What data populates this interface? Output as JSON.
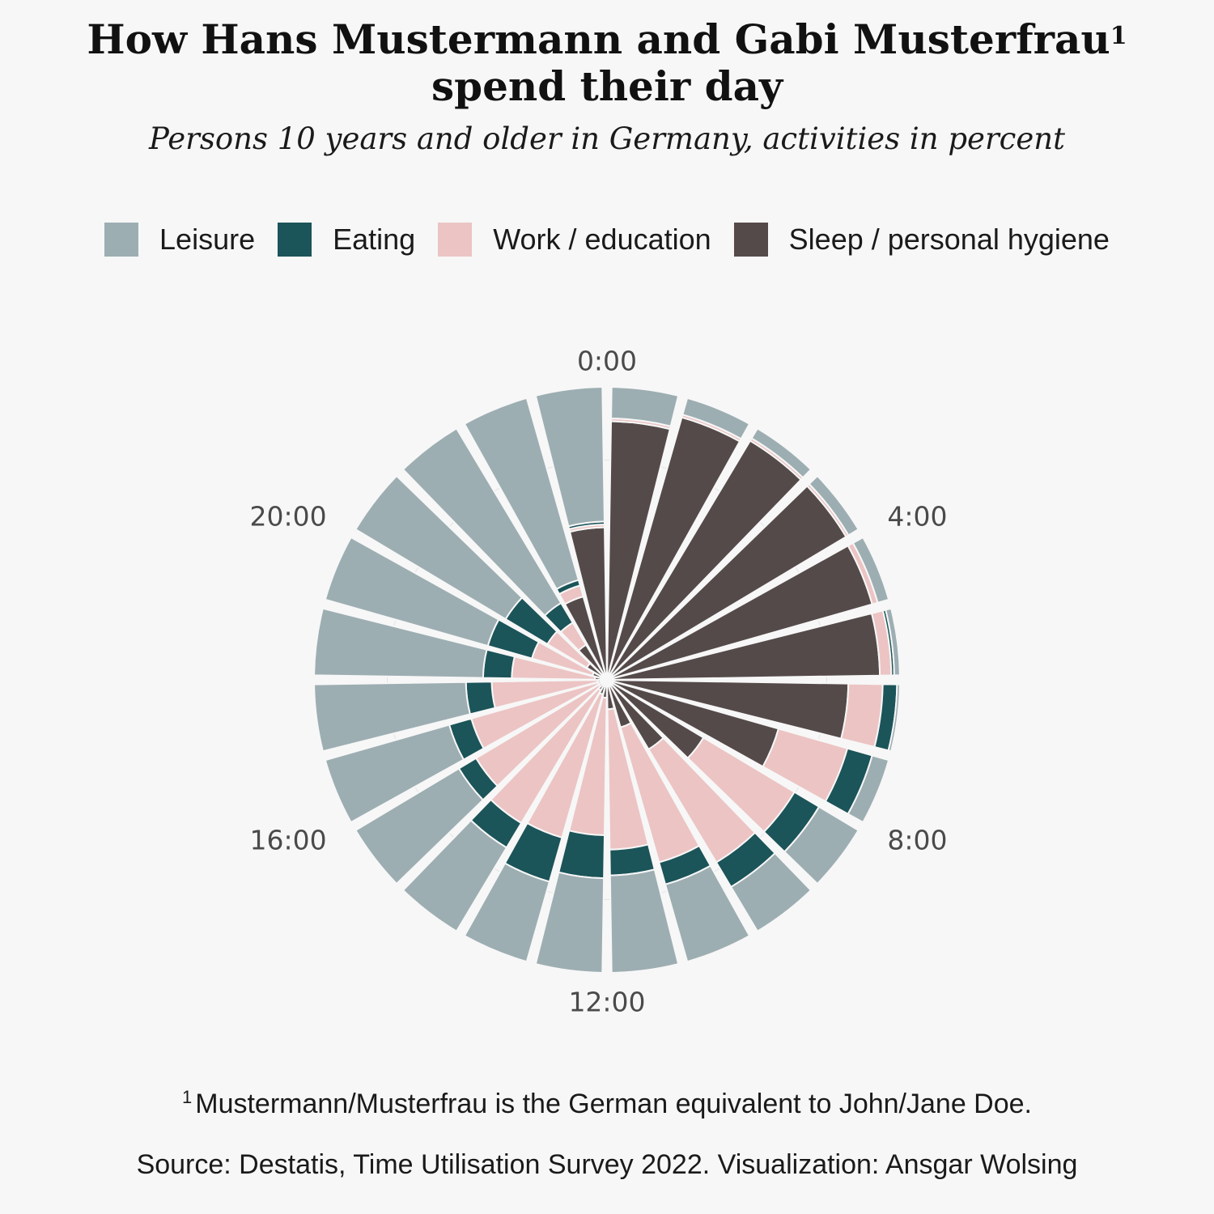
{
  "title": {
    "line1": "How Hans Mustermann and Gabi Musterfrau",
    "footnote_mark": "1",
    "line2": "spend their day"
  },
  "subtitle": "Persons 10 years and older in Germany, activities in percent",
  "footnote": {
    "mark": "1",
    "text": "Mustermann/Musterfrau is the German equivalent to John/Jane Doe."
  },
  "source": "Source: Destatis, Time Utilisation Survey 2022. Visualization: Ansgar Wolsing",
  "chart_data": {
    "type": "bar",
    "subtype": "polar-stacked-bar",
    "hours": [
      0,
      1,
      2,
      3,
      4,
      5,
      6,
      7,
      8,
      9,
      10,
      11,
      12,
      13,
      14,
      15,
      16,
      17,
      18,
      19,
      20,
      21,
      22,
      23
    ],
    "tick_labels": [
      "0:00",
      "4:00",
      "8:00",
      "12:00",
      "16:00",
      "20:00"
    ],
    "colors": {
      "sleep": "#554a4a",
      "work": "#ecc4c4",
      "eating": "#1b5459",
      "leisure": "#9daeb2"
    },
    "series": [
      {
        "name": "Sleep / personal hygiene",
        "key": "sleep",
        "values": [
          88,
          93,
          95,
          95,
          94,
          93,
          82,
          60,
          37,
          26,
          15,
          8,
          4,
          3,
          2,
          1,
          1,
          1,
          2,
          3,
          6,
          12,
          28,
          51
        ]
      },
      {
        "name": "Work / education",
        "key": "work",
        "values": [
          1,
          1,
          1,
          1,
          2,
          4,
          12,
          25,
          37,
          46,
          49,
          49,
          48,
          52,
          54,
          50,
          46,
          37,
          29,
          22,
          16,
          9,
          4,
          1
        ]
      },
      {
        "name": "Eating",
        "key": "eating",
        "values": [
          0,
          0,
          0,
          0,
          0,
          1,
          5,
          9,
          10,
          10,
          8,
          9,
          15,
          16,
          10,
          7,
          8,
          9,
          10,
          16,
          17,
          8,
          2,
          1
        ]
      },
      {
        "name": "Leisure",
        "key": "leisure",
        "values": [
          11,
          6,
          4,
          4,
          4,
          2,
          1,
          6,
          16,
          18,
          28,
          34,
          33,
          29,
          34,
          42,
          45,
          53,
          59,
          59,
          61,
          71,
          66,
          47
        ]
      }
    ],
    "legend_order": [
      "leisure",
      "eating",
      "work",
      "sleep"
    ],
    "legend_position": "top",
    "r_max": 100
  }
}
